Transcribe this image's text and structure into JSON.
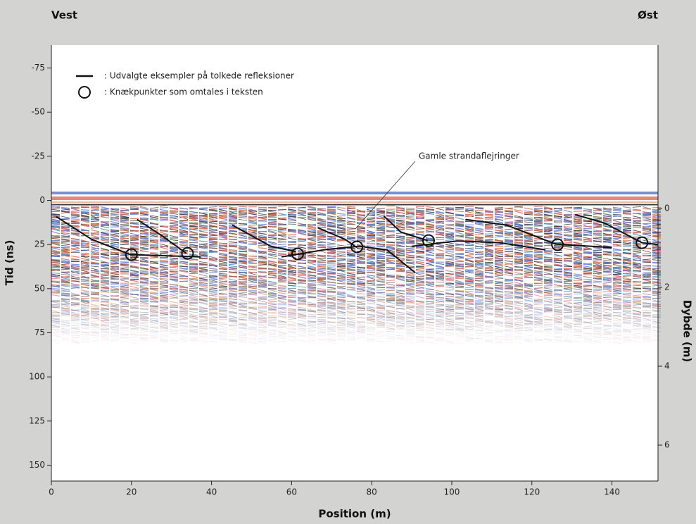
{
  "chart_data": {
    "type": "radargram",
    "title_left": "Vest",
    "title_right": "Øst",
    "xlabel": "Position (m)",
    "ylabel": "Tid (ns)",
    "y2label": "Dybde (m)",
    "xlim": [
      0,
      151.5
    ],
    "xticks": [
      0,
      20,
      40,
      60,
      80,
      100,
      120,
      140
    ],
    "ylim": [
      -88,
      159
    ],
    "yticks": [
      -75,
      -50,
      -25,
      0,
      25,
      50,
      75,
      100,
      125,
      150
    ],
    "y2lim": [
      -4.14,
      6.91
    ],
    "y2ticks": [
      0,
      2,
      4,
      6
    ],
    "annotation": "Gamle strandaflejringer",
    "reflections": {
      "name": ": Udvalgte eksempler på tolkede refleksioner",
      "color": "#111111",
      "lines": [
        {
          "x": [
            1.2,
            10,
            19.7,
            37.3
          ],
          "y": [
            9.2,
            22,
            30.7,
            32
          ]
        },
        {
          "x": [
            21.4,
            27.6,
            33.7
          ],
          "y": [
            10.8,
            20,
            30
          ]
        },
        {
          "x": [
            45.2,
            54.8,
            61
          ],
          "y": [
            14,
            26,
            29
          ]
        },
        {
          "x": [
            57.5,
            68,
            76.8,
            83.8,
            90.9
          ],
          "y": [
            32,
            28,
            26,
            28,
            41
          ]
        },
        {
          "x": [
            66.6,
            73.3,
            76.3
          ],
          "y": [
            15.6,
            22,
            26.7
          ]
        },
        {
          "x": [
            83,
            87.3,
            94
          ],
          "y": [
            8.8,
            18,
            22.8
          ]
        },
        {
          "x": [
            90,
            101.4,
            112,
            123.4
          ],
          "y": [
            26,
            23,
            24,
            28
          ]
        },
        {
          "x": [
            103.5,
            113.7,
            126,
            140
          ],
          "y": [
            10.8,
            14,
            24.8,
            26.7
          ]
        },
        {
          "x": [
            130.8,
            138.3,
            147.5,
            151.5
          ],
          "y": [
            8,
            13,
            24,
            25
          ]
        }
      ]
    },
    "knickpoints": {
      "name": ": Knækpunkter som omtales i teksten",
      "color": "#111111",
      "x": [
        20,
        34,
        61.5,
        76.3,
        94.2,
        126.4,
        147.5
      ],
      "y": [
        30.7,
        30,
        30.3,
        26.3,
        22.8,
        25.1,
        24
      ]
    }
  }
}
